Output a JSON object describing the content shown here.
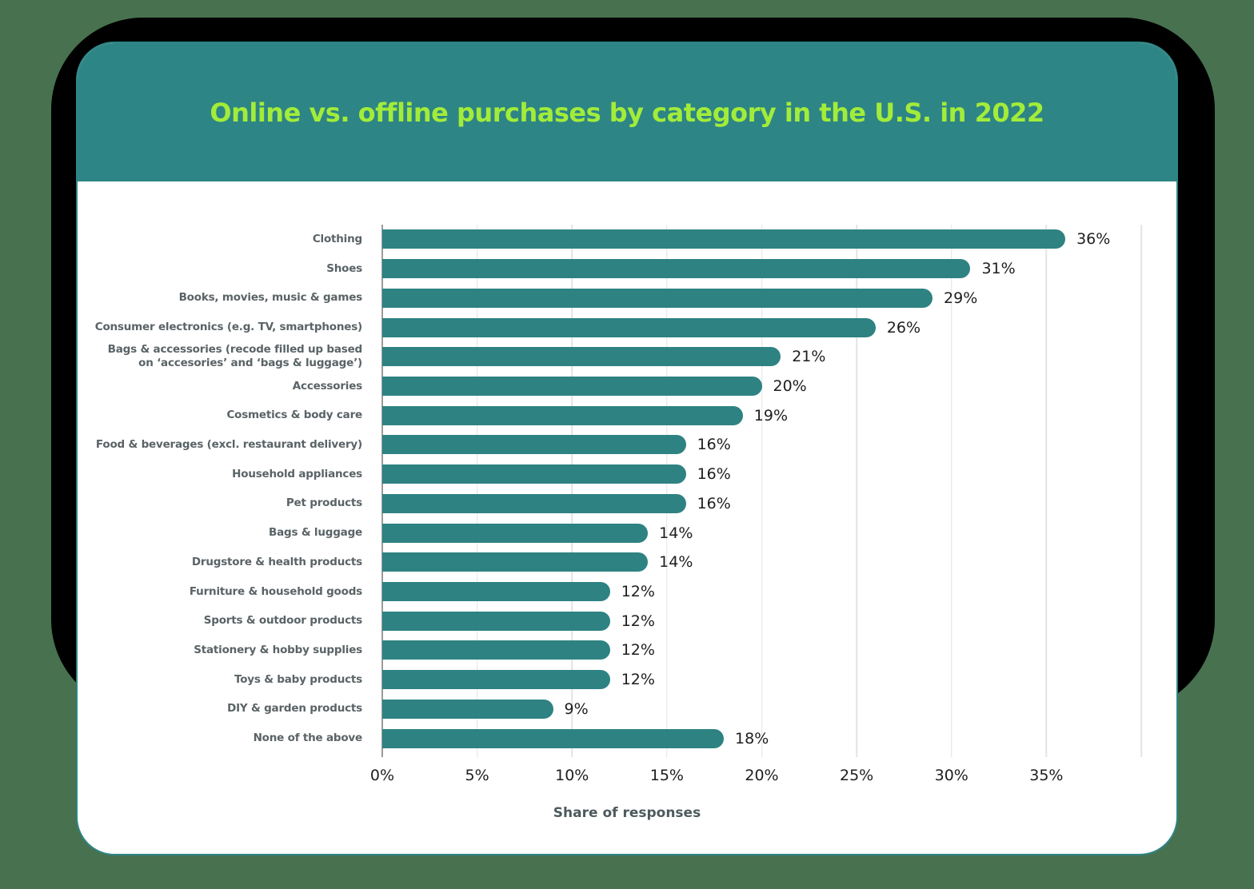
{
  "page": {
    "background_color": "#48714f",
    "shadow_color": "#000000"
  },
  "card": {
    "background_color": "#ffffff",
    "border_color": "#2e8585"
  },
  "header": {
    "background_color": "#2e8585",
    "title": "Online vs. offline purchases by category in the U.S. in 2022",
    "title_color": "#a2ec3a"
  },
  "chart_data": {
    "type": "bar",
    "orientation": "horizontal",
    "title": "Online vs. offline purchases by category in the U.S. in 2022",
    "xlabel": "Share of responses",
    "categories": [
      "Clothing",
      "Shoes",
      "Books, movies, music & games",
      "Consumer electronics (e.g. TV, smartphones)",
      "Bags & accessories (recode filled up based\non ‘accesories’ and ‘bags & luggage’)",
      "Accessories",
      "Cosmetics & body care",
      "Food & beverages (excl. restaurant delivery)",
      "Household appliances",
      "Pet products",
      "Bags & luggage",
      "Drugstore & health products",
      "Furniture & household goods",
      "Sports & outdoor products",
      "Stationery & hobby supplies",
      "Toys & baby products",
      "DIY & garden products",
      "None of the above"
    ],
    "values": [
      36,
      31,
      29,
      26,
      21,
      20,
      19,
      16,
      16,
      16,
      14,
      14,
      12,
      12,
      12,
      12,
      9,
      18
    ],
    "value_labels": [
      "36%",
      "31%",
      "29%",
      "26%",
      "21%",
      "20%",
      "19%",
      "16%",
      "16%",
      "16%",
      "14%",
      "14%",
      "12%",
      "12%",
      "12%",
      "12%",
      "9%",
      "18%"
    ],
    "x_ticks": [
      "0%",
      "5%",
      "10%",
      "15%",
      "20%",
      "25%",
      "30%",
      "35%"
    ],
    "xlim": [
      0,
      40
    ],
    "gridline_step_pct": 5,
    "grid_on": true,
    "legend": "none",
    "bar_color": "#2e8282",
    "category_label_color": "#5a6366",
    "value_label_color": "#1e1e1e",
    "grid_color": "#e3e3e3",
    "zero_line_color": "#9a9a9a",
    "xlabel_color": "#4d5a5c"
  }
}
